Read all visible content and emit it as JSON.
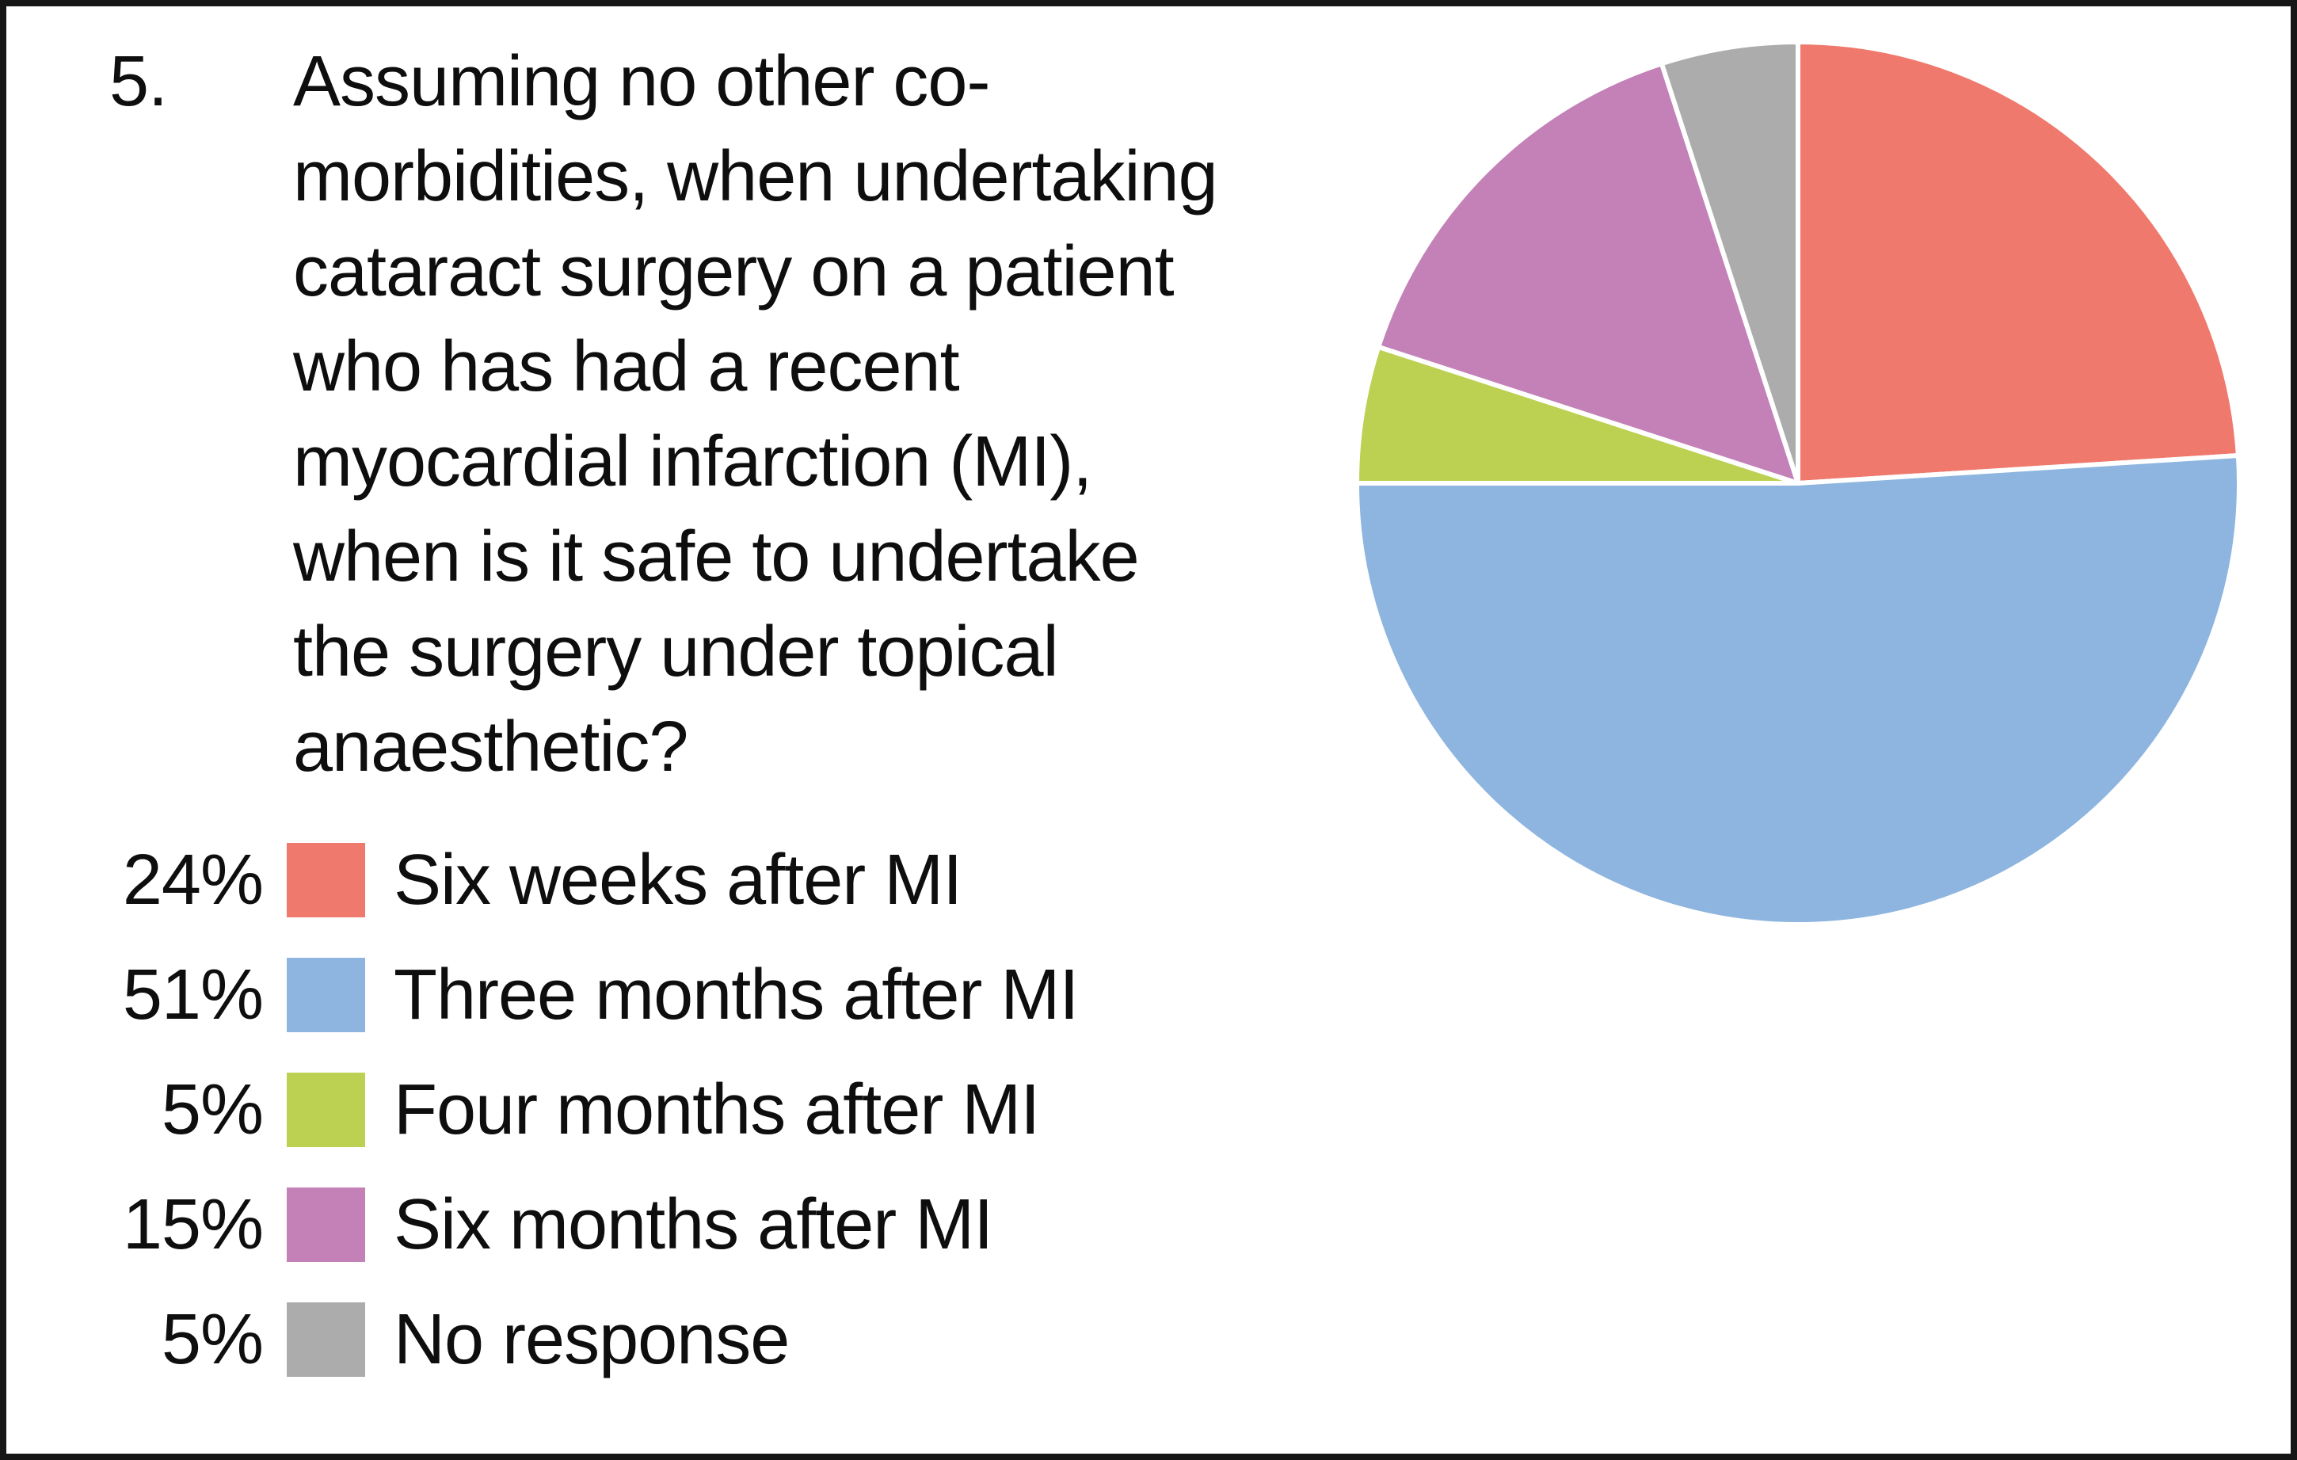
{
  "question": {
    "number": "5.",
    "lines": [
      "Assuming no other co-",
      "morbidities, when undertaking",
      "cataract surgery on a patient",
      "who has had a recent",
      "myocardial infarction (MI),",
      "when is it safe to undertake",
      "the surgery under topical",
      "anaesthetic?"
    ]
  },
  "chart_data": {
    "type": "pie",
    "title": "Assuming no other co-morbidities, when undertaking cataract surgery on a patient who has had a recent myocardial infarction (MI), when is it safe to undertake the surgery under topical anaesthetic?",
    "direction": "clockwise",
    "start_angle_deg": 0,
    "legend_position": "bottom-left",
    "separator_color": "#ffffff",
    "slices": [
      {
        "label": "Six weeks after MI",
        "value": 24,
        "pct_label": "24%",
        "color": "#EF796D"
      },
      {
        "label": "Three months after MI",
        "value": 51,
        "pct_label": "51%",
        "color": "#8DB5DF"
      },
      {
        "label": "Four months after MI",
        "value": 5,
        "pct_label": "5%",
        "color": "#BCD152"
      },
      {
        "label": "Six months after MI",
        "value": 15,
        "pct_label": "15%",
        "color": "#C381B7"
      },
      {
        "label": "No response",
        "value": 5,
        "pct_label": "5%",
        "color": "#ACACAC"
      }
    ]
  }
}
